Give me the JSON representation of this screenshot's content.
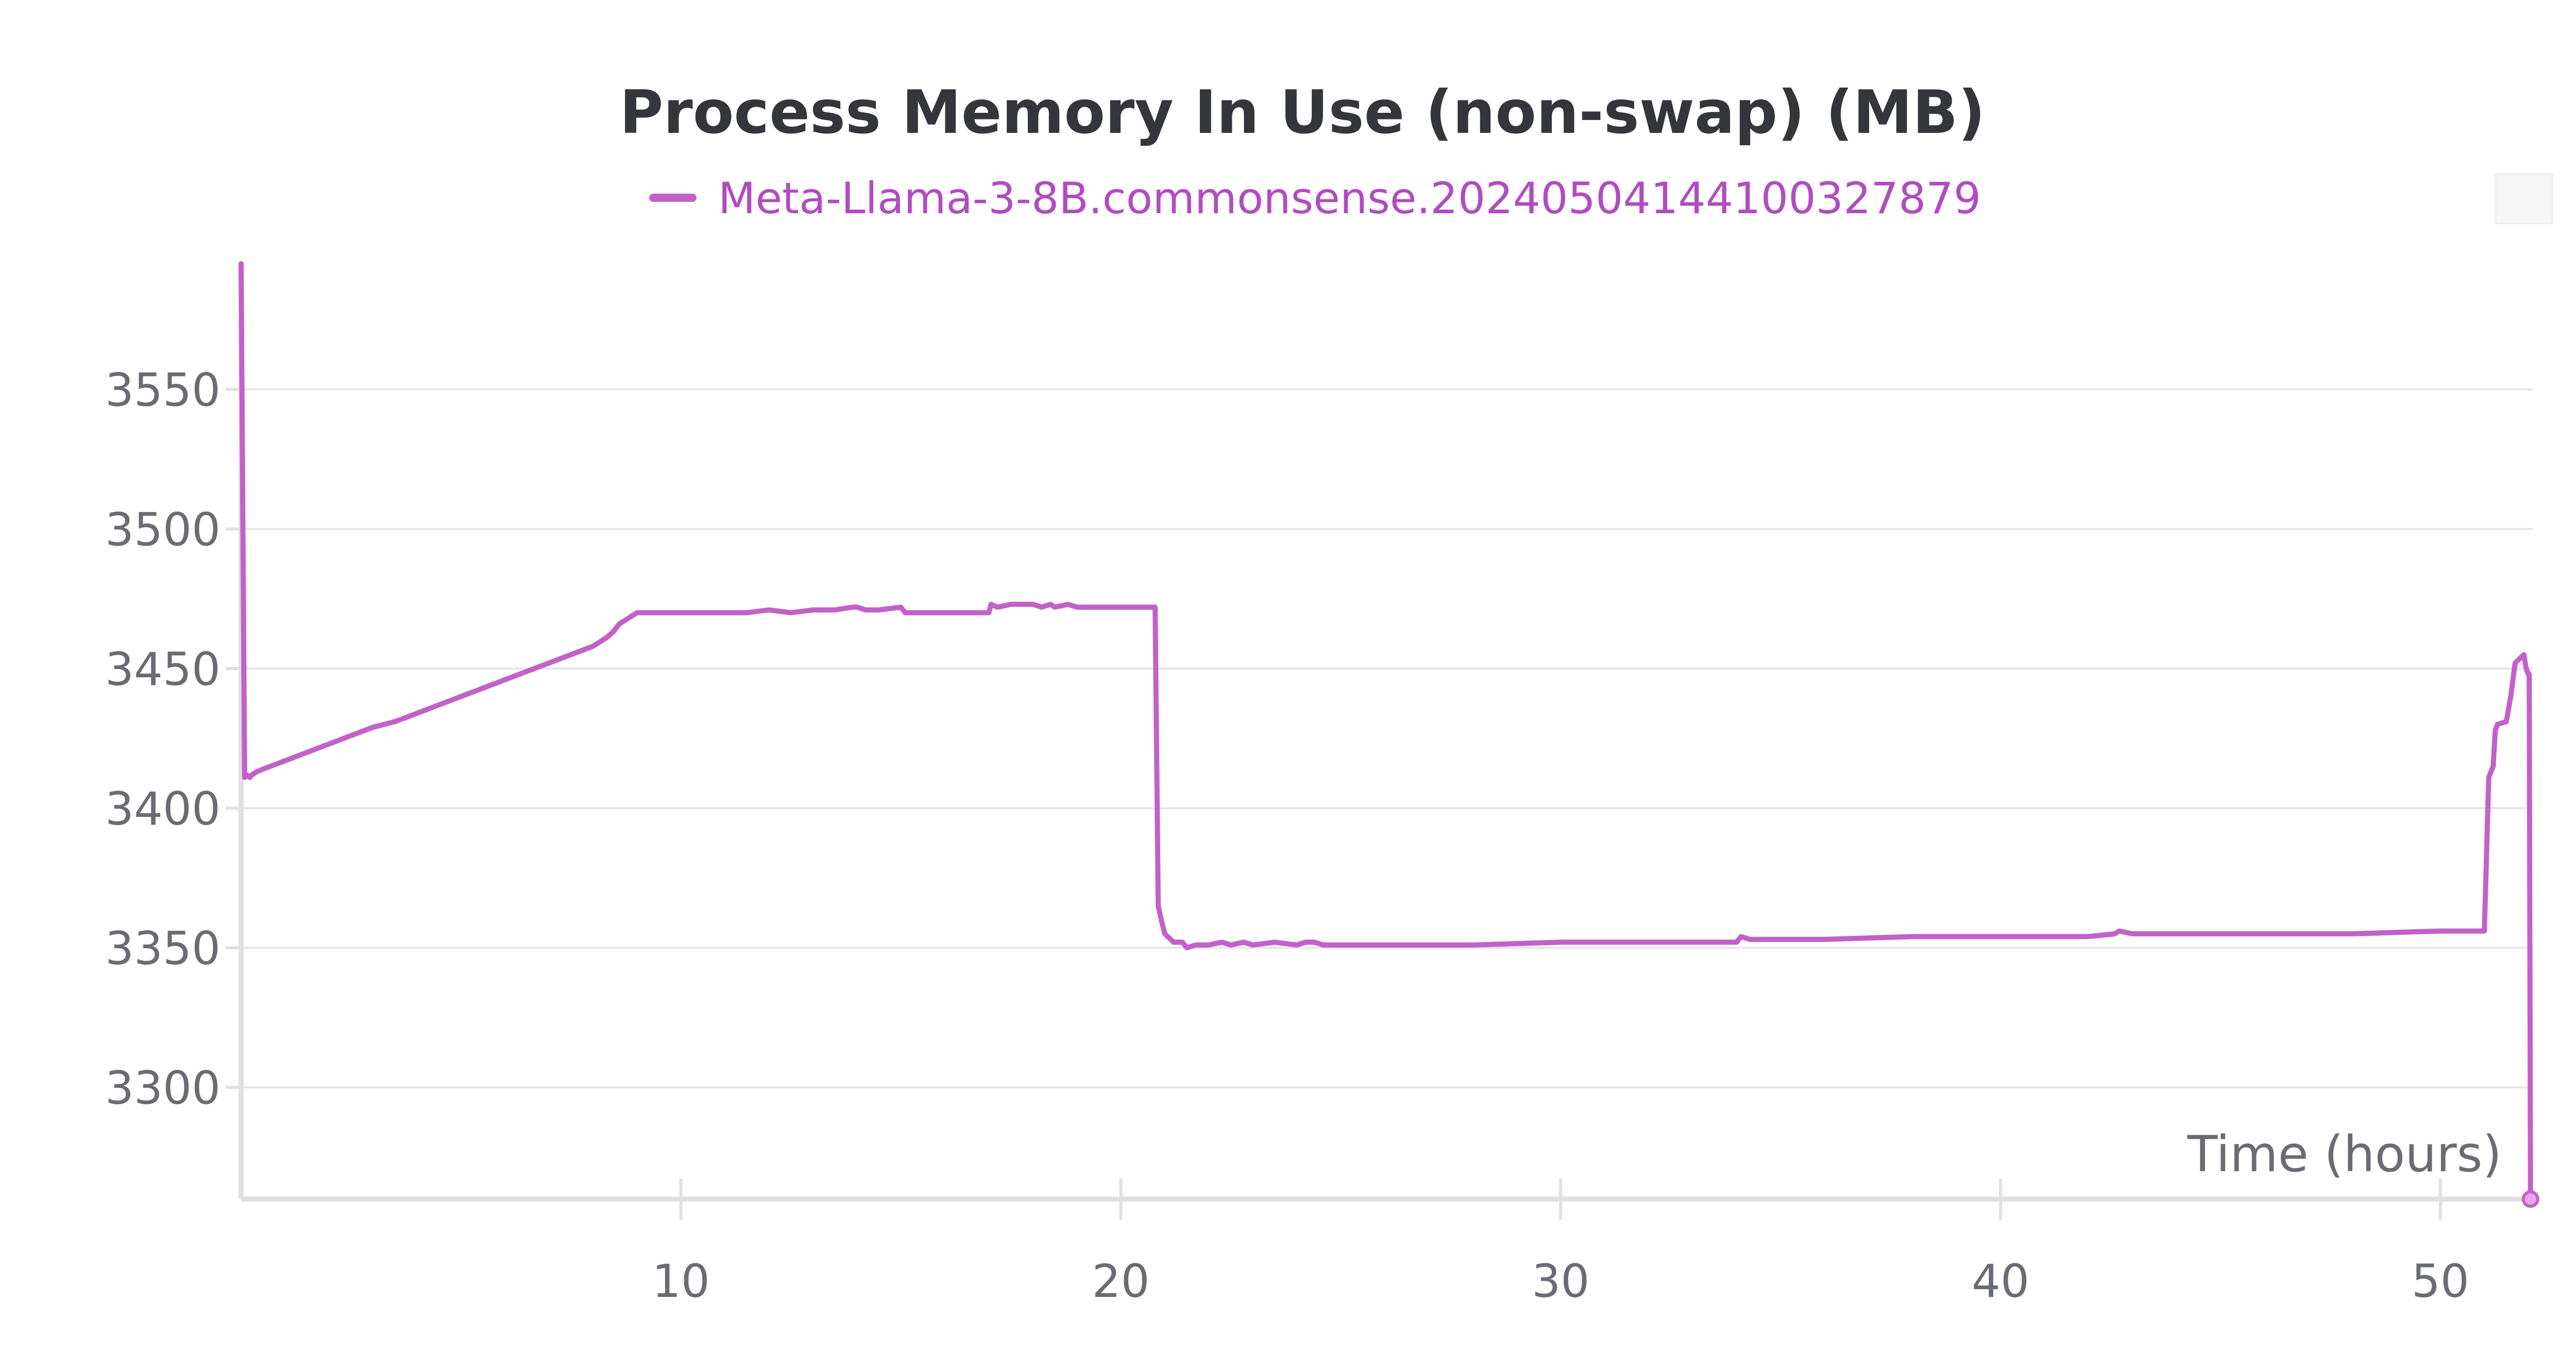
{
  "chart_data": {
    "type": "line",
    "title": "Process Memory In Use (non-swap) (MB)",
    "xlabel": "Time (hours)",
    "ylabel": "",
    "xlim": [
      0,
      52.1
    ],
    "ylim": [
      3260,
      3595
    ],
    "x_ticks": [
      10,
      20,
      30,
      40,
      50
    ],
    "y_ticks": [
      3300,
      3350,
      3400,
      3450,
      3500,
      3550
    ],
    "grid": true,
    "legend_position": "top-center",
    "colors": {
      "series": "#c261c9",
      "legend_text": "#b04cc0",
      "grid": "#e6e6ea",
      "axis": "#e0e0e3",
      "title": "#35353c",
      "ticks": "#6b6c73"
    },
    "series": [
      {
        "name": "Meta-Llama-3-8B.commonsense.20240504144100327879",
        "x": [
          0,
          0.08,
          0.12,
          0.2,
          0.25,
          0.35,
          0.5,
          1,
          2,
          2.5,
          3,
          3.5,
          4,
          5,
          6,
          7,
          7.5,
          8,
          8.3,
          8.45,
          8.6,
          8.8,
          9,
          9.5,
          10,
          10.5,
          11,
          11.5,
          12,
          12.5,
          13,
          13.5,
          13.9,
          14,
          14.2,
          14.5,
          15,
          15.1,
          15.3,
          16,
          16.5,
          17,
          17.05,
          17.2,
          17.5,
          18,
          18.2,
          18.4,
          18.5,
          18.8,
          19,
          19.2,
          19.5,
          20,
          20.5,
          20.78,
          20.85,
          20.92,
          21,
          21.2,
          21.4,
          21.5,
          21.7,
          22,
          22.3,
          22.5,
          22.8,
          23,
          23.5,
          24,
          24.2,
          24.4,
          24.6,
          25,
          25.5,
          25.7,
          26,
          28,
          30,
          32,
          34,
          34.1,
          34.3,
          34.5,
          36,
          38,
          40,
          42,
          42.6,
          42.7,
          43,
          45,
          48,
          50,
          51,
          51.1,
          51.2,
          51.25,
          51.3,
          51.5,
          51.6,
          51.7,
          51.9,
          51.95,
          52.0,
          52.02,
          52.05
        ],
        "values": [
          3595,
          3411,
          3412,
          3411,
          3412,
          3413,
          3414,
          3417,
          3423,
          3426,
          3429,
          3431,
          3434,
          3440,
          3446,
          3452,
          3455,
          3458,
          3461,
          3463,
          3466,
          3468,
          3470,
          3470,
          3470,
          3470,
          3470,
          3470,
          3471,
          3470,
          3471,
          3471,
          3472,
          3472,
          3471,
          3471,
          3472,
          3470,
          3470,
          3470,
          3470,
          3470,
          3473,
          3472,
          3473,
          3473,
          3472,
          3473,
          3472,
          3473,
          3472,
          3472,
          3472,
          3472,
          3472,
          3472,
          3365,
          3360,
          3355,
          3352,
          3352,
          3350,
          3351,
          3351,
          3352,
          3351,
          3352,
          3351,
          3352,
          3351,
          3352,
          3352,
          3351,
          3351,
          3351,
          3351,
          3351,
          3351,
          3352,
          3352,
          3352,
          3354,
          3353,
          3353,
          3353,
          3354,
          3354,
          3354,
          3355,
          3356,
          3355,
          3355,
          3355,
          3356,
          3356,
          3411,
          3415,
          3428,
          3430,
          3431,
          3440,
          3452,
          3455,
          3450,
          3448,
          3448,
          3260
        ]
      }
    ]
  }
}
